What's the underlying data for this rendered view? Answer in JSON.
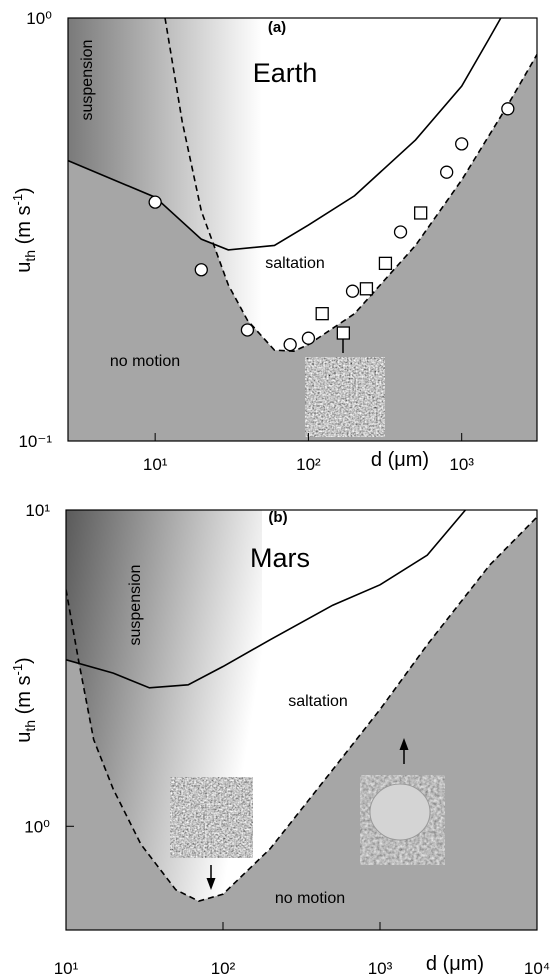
{
  "chart_data": [
    {
      "type": "line",
      "panel_label": "(a)",
      "title": "Earth",
      "xlabel": "d (μm)",
      "ylabel": {
        "text": "u",
        "sub": "th",
        "unit": " (m s",
        "sup": "-1",
        "close": ")"
      },
      "regions": {
        "suspension": "suspension",
        "saltation": "saltation",
        "no_motion": "no motion"
      },
      "log": true,
      "area_color": "#a6a6a6",
      "xlim": [
        2.7,
        3100
      ],
      "ylim": [
        0.1,
        1
      ],
      "xticks": [
        {
          "value": 10,
          "label": "10¹"
        },
        {
          "value": 100,
          "label": "10²"
        },
        {
          "value": 1000,
          "label": "10³"
        }
      ],
      "yticks": [
        {
          "value": 0.1,
          "label": "10⁻¹"
        },
        {
          "value": 1,
          "label": "10⁰"
        }
      ],
      "series": [
        {
          "color": "#000000",
          "dashed": false,
          "x": [
            2.7,
            10,
            20,
            30,
            60,
            100,
            200,
            500,
            1000,
            1500,
            1800
          ],
          "values": [
            0.46,
            0.377,
            0.3,
            0.283,
            0.29,
            0.324,
            0.38,
            0.515,
            0.69,
            0.89,
            1.0
          ]
        },
        {
          "color": "#000000",
          "dashed": true,
          "x": [
            11.6,
            15,
            20,
            30,
            40,
            60,
            80,
            100,
            200,
            500,
            1000,
            2000,
            3100
          ],
          "values": [
            1.0,
            0.57,
            0.35,
            0.234,
            0.193,
            0.164,
            0.163,
            0.169,
            0.2,
            0.29,
            0.414,
            0.623,
            0.82
          ]
        }
      ],
      "markers": [
        {
          "marker": "circle",
          "x": [
            10,
            20,
            40,
            76,
            100,
            194,
            399,
            798,
            1000,
            2000
          ],
          "values": [
            0.367,
            0.254,
            0.183,
            0.169,
            0.175,
            0.226,
            0.312,
            0.432,
            0.504,
            0.61
          ]
        },
        {
          "marker": "square",
          "x": [
            123,
            169,
            239,
            318,
            540
          ],
          "values": [
            0.2,
            0.18,
            0.229,
            0.263,
            0.346
          ]
        }
      ]
    },
    {
      "type": "line",
      "panel_label": "(b)",
      "title": "Mars",
      "xlabel": "d (μm)",
      "ylabel": {
        "text": "u",
        "sub": "th",
        "unit": " (m s",
        "sup": "-1",
        "close": ")"
      },
      "regions": {
        "suspension": "suspension",
        "saltation": "saltation",
        "no_motion": "no motion"
      },
      "log": true,
      "area_color": "#a6a6a6",
      "xlim": [
        10,
        10000
      ],
      "ylim": [
        0.47,
        10
      ],
      "xticks": [
        {
          "value": 10,
          "label": "10¹"
        },
        {
          "value": 100,
          "label": "10²"
        },
        {
          "value": 1000,
          "label": "10³"
        },
        {
          "value": 10000,
          "label": "10⁴"
        }
      ],
      "yticks": [
        {
          "value": 1,
          "label": "10⁰"
        },
        {
          "value": 10,
          "label": "10¹"
        }
      ],
      "series": [
        {
          "color": "#000000",
          "dashed": false,
          "x": [
            10,
            20,
            34,
            60,
            100,
            200,
            500,
            1000,
            2000,
            3500
          ],
          "values": [
            3.36,
            3.05,
            2.74,
            2.8,
            3.2,
            3.89,
            5.0,
            5.8,
            7.2,
            10
          ]
        },
        {
          "color": "#000000",
          "dashed": true,
          "x": [
            10,
            12,
            15,
            20,
            30,
            50,
            70,
            100,
            200,
            500,
            1000,
            2000,
            5000,
            10000
          ],
          "values": [
            5.6,
            3.36,
            1.88,
            1.31,
            0.877,
            0.63,
            0.58,
            0.61,
            0.85,
            1.51,
            2.34,
            3.75,
            6.7,
            9.5
          ]
        }
      ],
      "markers": []
    }
  ]
}
